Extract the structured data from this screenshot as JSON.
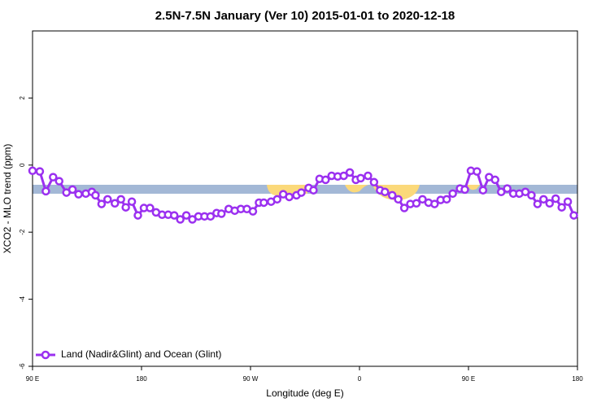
{
  "chart_data": {
    "type": "line",
    "title": "2.5N-7.5N January (Ver 10)   2015-01-01 to 2020-12-18",
    "x_label": "Longitude (deg E)",
    "y_label": "XCO2 - MLO trend (ppm)",
    "xlim": [
      90,
      540
    ],
    "ylim": [
      -6,
      4
    ],
    "xticks": [
      {
        "value": 90,
        "label": "90 E"
      },
      {
        "value": 180,
        "label": "180"
      },
      {
        "value": 270,
        "label": "90 W"
      },
      {
        "value": 360,
        "label": "0"
      },
      {
        "value": 450,
        "label": "90 E"
      },
      {
        "value": 540,
        "label": "180"
      }
    ],
    "yticks": [
      -6,
      -4,
      -2,
      0,
      2
    ],
    "legend": "bottom-left",
    "series": [
      {
        "name": "Land (Nadir&Glint) and Ocean (Glint)",
        "color": "#9b30f0",
        "x": [
          90,
          96,
          101,
          107,
          112,
          118,
          123,
          128,
          134,
          139,
          142,
          147,
          152,
          158,
          163,
          167,
          172,
          177,
          182,
          187,
          192,
          197,
          202,
          207,
          212,
          217,
          222,
          227,
          232,
          237,
          242,
          246,
          252,
          257,
          262,
          267,
          272,
          277,
          281,
          287,
          292,
          297,
          302,
          308,
          312,
          318,
          322,
          327,
          332,
          337,
          342,
          347,
          352,
          357,
          361,
          367,
          372,
          377,
          381,
          387,
          392,
          397,
          402,
          407,
          412,
          417,
          422,
          427,
          432,
          437,
          443,
          447,
          452,
          457,
          462,
          467,
          472,
          477,
          482,
          487,
          492,
          497,
          502,
          507,
          512,
          517,
          522,
          527,
          532,
          537
        ],
        "values": [
          -0.17,
          -0.19,
          -0.78,
          -0.36,
          -0.48,
          -0.82,
          -0.73,
          -0.87,
          -0.85,
          -0.8,
          -0.9,
          -1.16,
          -1.02,
          -1.14,
          -1.02,
          -1.26,
          -1.09,
          -1.5,
          -1.28,
          -1.28,
          -1.41,
          -1.48,
          -1.48,
          -1.5,
          -1.62,
          -1.5,
          -1.62,
          -1.53,
          -1.53,
          -1.53,
          -1.43,
          -1.45,
          -1.31,
          -1.36,
          -1.31,
          -1.31,
          -1.38,
          -1.12,
          -1.12,
          -1.09,
          -1.02,
          -0.87,
          -0.95,
          -0.9,
          -0.82,
          -0.68,
          -0.75,
          -0.41,
          -0.44,
          -0.32,
          -0.34,
          -0.32,
          -0.22,
          -0.44,
          -0.39,
          -0.32,
          -0.51,
          -0.75,
          -0.8,
          -0.9,
          -1.02,
          -1.28,
          -1.16,
          -1.14,
          -1.02,
          -1.12,
          -1.16,
          -1.04,
          -1.02,
          -0.85,
          -0.7,
          -0.73,
          -0.17,
          -0.19,
          -0.75,
          -0.36,
          -0.44,
          -0.8,
          -0.7,
          -0.85,
          -0.85,
          -0.8,
          -0.9,
          -1.16,
          -1.02,
          -1.14,
          -1.0,
          -1.26,
          -1.09,
          -1.5
        ]
      }
    ]
  }
}
